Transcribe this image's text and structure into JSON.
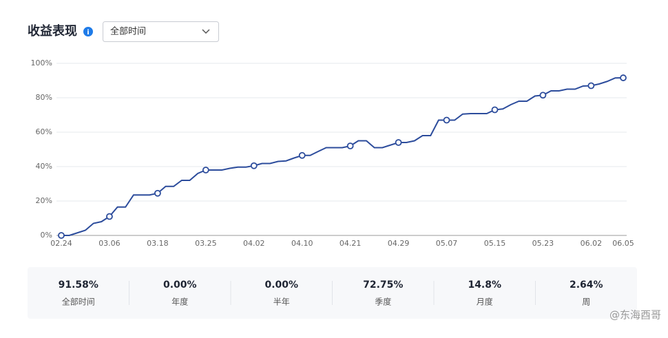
{
  "chart_data": {
    "type": "line",
    "title": "收益表现",
    "filter": "全部时间",
    "categories": [
      "02.24",
      null,
      null,
      null,
      null,
      null,
      "03.06",
      null,
      null,
      null,
      null,
      null,
      "03.18",
      null,
      null,
      null,
      null,
      null,
      "03.25",
      null,
      null,
      null,
      null,
      null,
      "04.02",
      null,
      null,
      null,
      null,
      null,
      "04.10",
      null,
      null,
      null,
      null,
      null,
      "04.21",
      null,
      null,
      null,
      null,
      null,
      "04.29",
      null,
      null,
      null,
      null,
      null,
      "05.07",
      null,
      null,
      null,
      null,
      null,
      "05.15",
      null,
      null,
      null,
      null,
      null,
      "05.23",
      null,
      null,
      null,
      null,
      null,
      "06.02",
      null,
      null,
      null,
      "06.05"
    ],
    "series": [
      {
        "color": "#2c4c9c",
        "values": [
          0,
          0,
          1.5,
          3,
          7,
          8,
          11,
          16.5,
          16.5,
          23.5,
          23.5,
          23.5,
          24.5,
          28.5,
          28.5,
          32,
          32,
          36,
          38,
          38,
          38,
          39,
          39.7,
          39.7,
          40.5,
          41.8,
          41.8,
          43,
          43.3,
          45,
          46.5,
          46.5,
          48.8,
          51,
          51,
          51,
          52,
          55,
          55,
          51,
          51,
          52.5,
          54,
          54,
          55,
          58,
          58,
          67,
          67,
          67,
          70.5,
          70.8,
          70.8,
          70.8,
          73,
          73.5,
          76,
          78,
          78,
          81,
          81.5,
          84,
          84,
          85,
          85,
          86.8,
          87,
          88,
          89.5,
          91.5,
          91.58
        ]
      }
    ],
    "ylim": [
      0,
      100
    ],
    "yticks": [
      {
        "value": 0,
        "label": "0%"
      },
      {
        "value": 20,
        "label": "20%"
      },
      {
        "value": 40,
        "label": "40%"
      },
      {
        "value": 60,
        "label": "60%"
      },
      {
        "value": 80,
        "label": "80%"
      },
      {
        "value": 100,
        "label": "100%"
      }
    ],
    "grid": true
  },
  "stats": [
    {
      "value": "91.58%",
      "label": "全部时间"
    },
    {
      "value": "0.00%",
      "label": "年度"
    },
    {
      "value": "0.00%",
      "label": "半年"
    },
    {
      "value": "72.75%",
      "label": "季度"
    },
    {
      "value": "14.8%",
      "label": "月度"
    },
    {
      "value": "2.64%",
      "label": "周"
    }
  ],
  "watermark": "@东海酉哥"
}
